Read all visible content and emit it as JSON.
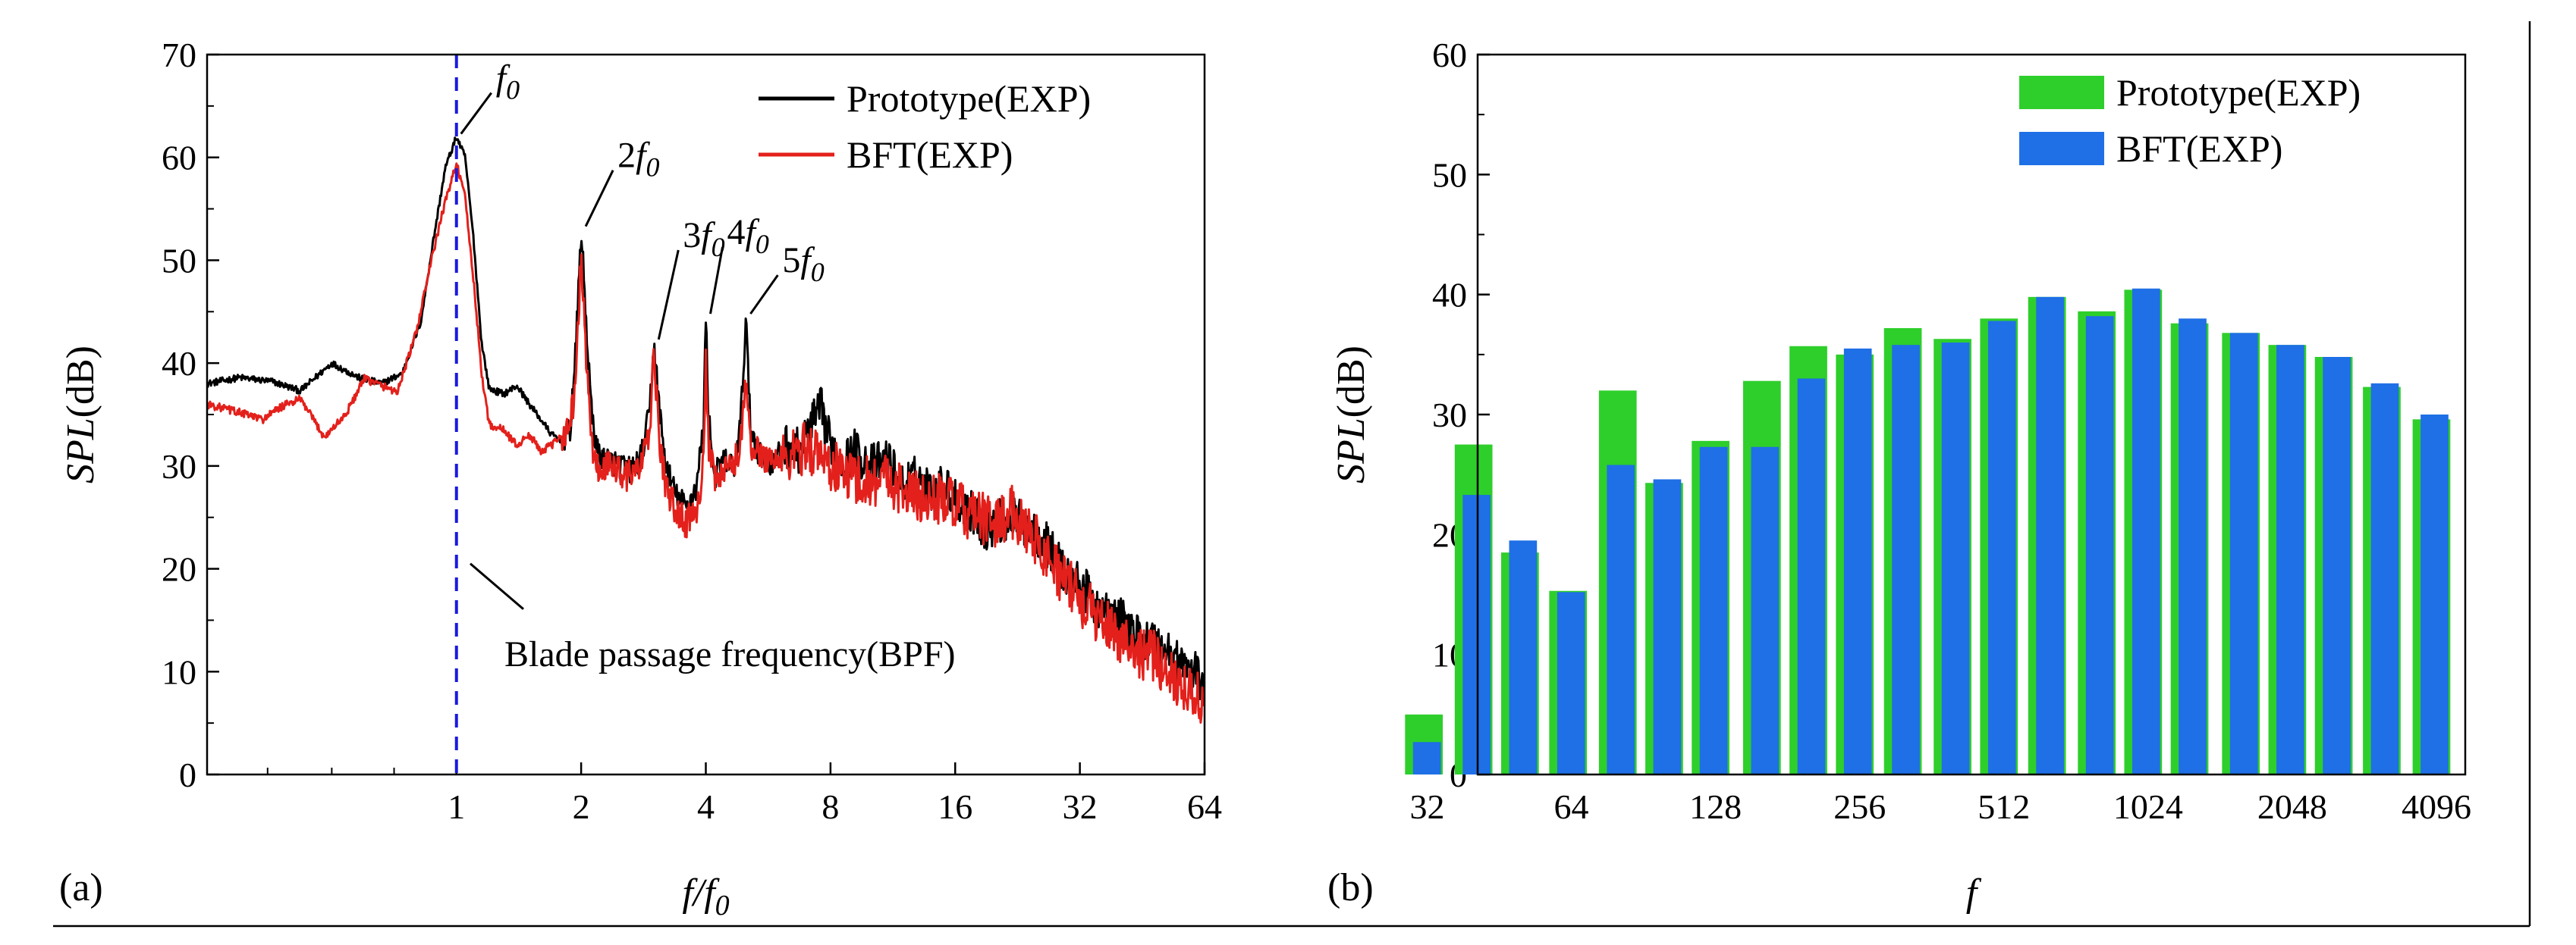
{
  "chart_data": [
    {
      "panel": "a",
      "type": "line",
      "panel_label": "(a)",
      "xlabel": "f/f0",
      "ylabel": "SPL(dB)",
      "xscale": "log2",
      "xlim": [
        0.25,
        64
      ],
      "ylim": [
        0,
        70
      ],
      "xticks": [
        1,
        2,
        4,
        8,
        16,
        32,
        64
      ],
      "xtick_labels": [
        "1",
        "2",
        "4",
        "8",
        "16",
        "32",
        "64"
      ],
      "yticks": [
        0,
        10,
        20,
        30,
        40,
        50,
        60,
        70
      ],
      "ytick_labels": [
        "0",
        "10",
        "20",
        "30",
        "40",
        "50",
        "60",
        "70"
      ],
      "legend_position": "top-right",
      "series": [
        {
          "name": "Prototype(EXP)",
          "color": "#000000",
          "points": [
            [
              0.25,
              38
            ],
            [
              0.3,
              38.6
            ],
            [
              0.36,
              38.2
            ],
            [
              0.42,
              37.3
            ],
            [
              0.5,
              40
            ],
            [
              0.58,
              38.6
            ],
            [
              0.66,
              38
            ],
            [
              0.74,
              39
            ],
            [
              0.82,
              44
            ],
            [
              0.88,
              52
            ],
            [
              0.94,
              59
            ],
            [
              1.0,
              62
            ],
            [
              1.05,
              60
            ],
            [
              1.1,
              52
            ],
            [
              1.15,
              42
            ],
            [
              1.2,
              37.5
            ],
            [
              1.3,
              37
            ],
            [
              1.4,
              37.8
            ],
            [
              1.5,
              36
            ],
            [
              1.6,
              34.5
            ],
            [
              1.7,
              33
            ],
            [
              1.8,
              32.5
            ],
            [
              1.88,
              33.5
            ],
            [
              1.94,
              41
            ],
            [
              2.0,
              53
            ],
            [
              2.05,
              45
            ],
            [
              2.12,
              35
            ],
            [
              2.2,
              31
            ],
            [
              2.35,
              30.5
            ],
            [
              2.5,
              30
            ],
            [
              2.65,
              29.5
            ],
            [
              2.8,
              31
            ],
            [
              2.92,
              35
            ],
            [
              3.0,
              42
            ],
            [
              3.08,
              36
            ],
            [
              3.2,
              30
            ],
            [
              3.4,
              27
            ],
            [
              3.6,
              26
            ],
            [
              3.8,
              28
            ],
            [
              3.95,
              34
            ],
            [
              4.0,
              44.5
            ],
            [
              4.06,
              35
            ],
            [
              4.2,
              29
            ],
            [
              4.4,
              30.5
            ],
            [
              4.7,
              30
            ],
            [
              4.85,
              34
            ],
            [
              5.0,
              44.5
            ],
            [
              5.12,
              34
            ],
            [
              5.4,
              31
            ],
            [
              5.8,
              30
            ],
            [
              6.2,
              32
            ],
            [
              6.7,
              31.5
            ],
            [
              7.2,
              34
            ],
            [
              7.6,
              35.5
            ],
            [
              8.0,
              32
            ],
            [
              8.6,
              30.5
            ],
            [
              9.2,
              31.5
            ],
            [
              10,
              30
            ],
            [
              11,
              30.5
            ],
            [
              12,
              28
            ],
            [
              13,
              29
            ],
            [
              14,
              27.5
            ],
            [
              15,
              28
            ],
            [
              16,
              27
            ],
            [
              17,
              26
            ],
            [
              18,
              25
            ],
            [
              19,
              24
            ],
            [
              20,
              24.5
            ],
            [
              22,
              25
            ],
            [
              24,
              24
            ],
            [
              26,
              23
            ],
            [
              28,
              21
            ],
            [
              30,
              19
            ],
            [
              32,
              18.5
            ],
            [
              36,
              16
            ],
            [
              40,
              15
            ],
            [
              44,
              13.5
            ],
            [
              48,
              13
            ],
            [
              52,
              12
            ],
            [
              56,
              11
            ],
            [
              60,
              10
            ],
            [
              64,
              9
            ]
          ],
          "noise_amplitude": 2.2
        },
        {
          "name": "BFT(EXP)",
          "color": "#e3201b",
          "points": [
            [
              0.25,
              36
            ],
            [
              0.3,
              35.2
            ],
            [
              0.34,
              34.5
            ],
            [
              0.38,
              35.8
            ],
            [
              0.42,
              36.5
            ],
            [
              0.48,
              32.8
            ],
            [
              0.54,
              35
            ],
            [
              0.6,
              38.5
            ],
            [
              0.66,
              37.8
            ],
            [
              0.72,
              37.2
            ],
            [
              0.8,
              43
            ],
            [
              0.87,
              50
            ],
            [
              0.93,
              55
            ],
            [
              1.0,
              59.5
            ],
            [
              1.05,
              56
            ],
            [
              1.1,
              48
            ],
            [
              1.15,
              39
            ],
            [
              1.2,
              34
            ],
            [
              1.3,
              33.5
            ],
            [
              1.4,
              32
            ],
            [
              1.5,
              33
            ],
            [
              1.6,
              31.5
            ],
            [
              1.7,
              32
            ],
            [
              1.8,
              33
            ],
            [
              1.88,
              34
            ],
            [
              1.94,
              38
            ],
            [
              2.0,
              50.5
            ],
            [
              2.06,
              40
            ],
            [
              2.12,
              32
            ],
            [
              2.2,
              29.5
            ],
            [
              2.4,
              30
            ],
            [
              2.6,
              29
            ],
            [
              2.8,
              30
            ],
            [
              2.92,
              33
            ],
            [
              3.0,
              41
            ],
            [
              3.08,
              33
            ],
            [
              3.2,
              28
            ],
            [
              3.4,
              25.5
            ],
            [
              3.6,
              24.5
            ],
            [
              3.8,
              26
            ],
            [
              3.95,
              30
            ],
            [
              4.0,
              40
            ],
            [
              4.06,
              32
            ],
            [
              4.2,
              28.5
            ],
            [
              4.5,
              29.5
            ],
            [
              4.8,
              31
            ],
            [
              5.0,
              38
            ],
            [
              5.12,
              32
            ],
            [
              5.5,
              31
            ],
            [
              6,
              30.5
            ],
            [
              6.5,
              31
            ],
            [
              7,
              32
            ],
            [
              7.5,
              31
            ],
            [
              8,
              30
            ],
            [
              9,
              29
            ],
            [
              10,
              28.5
            ],
            [
              11,
              29
            ],
            [
              12,
              27.5
            ],
            [
              13,
              27
            ],
            [
              14,
              26.5
            ],
            [
              15,
              27
            ],
            [
              16,
              26
            ],
            [
              18,
              25
            ],
            [
              20,
              24.5
            ],
            [
              22,
              25.5
            ],
            [
              24,
              24
            ],
            [
              26,
              22
            ],
            [
              28,
              20
            ],
            [
              30,
              18.5
            ],
            [
              32,
              17
            ],
            [
              36,
              15
            ],
            [
              40,
              13.5
            ],
            [
              44,
              12
            ],
            [
              48,
              11.5
            ],
            [
              52,
              10
            ],
            [
              56,
              9
            ],
            [
              60,
              8
            ],
            [
              64,
              7
            ]
          ],
          "noise_amplitude": 2.6
        }
      ],
      "bpf_line_x": 1,
      "bpf_line_color": "#1a1adf",
      "annotations": [
        {
          "kind": "harmonic",
          "coef": "",
          "sub": "0",
          "peak": [
            1.0,
            62
          ]
        },
        {
          "kind": "harmonic",
          "coef": "2",
          "sub": "0",
          "peak": [
            2.0,
            53
          ]
        },
        {
          "kind": "harmonic",
          "coef": "3",
          "sub": "0",
          "peak": [
            3.0,
            42
          ]
        },
        {
          "kind": "harmonic",
          "coef": "4",
          "sub": "0",
          "peak": [
            4.0,
            44.5
          ]
        },
        {
          "kind": "harmonic",
          "coef": "5",
          "sub": "0",
          "peak": [
            5.0,
            44.5
          ]
        },
        {
          "kind": "text",
          "text": "Blade passage frequency(BPF)",
          "point": [
            1.08,
            20.5
          ]
        }
      ]
    },
    {
      "panel": "b",
      "type": "bar",
      "panel_label": "(b)",
      "xlabel": "f",
      "ylabel": "SPL(dB)",
      "xscale": "log2",
      "ylim": [
        0,
        60
      ],
      "yticks": [
        0,
        10,
        20,
        30,
        40,
        50,
        60
      ],
      "ytick_labels": [
        "0",
        "10",
        "20",
        "30",
        "40",
        "50",
        "60"
      ],
      "xticks": [
        32,
        64,
        128,
        256,
        512,
        1024,
        2048,
        4096
      ],
      "xtick_labels": [
        "32",
        "64",
        "128",
        "256",
        "512",
        "1024",
        "2048",
        "4096"
      ],
      "legend_position": "top-right",
      "categories": [
        "31.5",
        "40",
        "50",
        "63",
        "80",
        "100",
        "125",
        "160",
        "200",
        "250",
        "315",
        "400",
        "500",
        "630",
        "800",
        "1000",
        "1250",
        "1600",
        "2000",
        "2500",
        "3150",
        "4000"
      ],
      "series": [
        {
          "name": "Prototype(EXP)",
          "color": "#2ecf2b",
          "values": [
            5,
            27.5,
            18.5,
            15.3,
            32,
            24.3,
            27.8,
            32.8,
            35.7,
            35,
            37.2,
            36.3,
            38,
            39.8,
            38.6,
            40.4,
            37.6,
            36.8,
            35.8,
            34.8,
            32.3,
            29.6
          ]
        },
        {
          "name": "BFT(EXP)",
          "color": "#1f6fe6",
          "values": [
            2.7,
            23.3,
            19.5,
            15.2,
            25.8,
            24.6,
            27.3,
            27.3,
            33,
            35.5,
            35.8,
            36,
            37.8,
            39.8,
            38.2,
            40.5,
            38,
            36.8,
            35.8,
            34.8,
            32.6,
            30
          ]
        }
      ]
    }
  ],
  "legend_a": [
    "Prototype(EXP)",
    "BFT(EXP)"
  ],
  "legend_b": [
    "Prototype(EXP)",
    "BFT(EXP)"
  ]
}
